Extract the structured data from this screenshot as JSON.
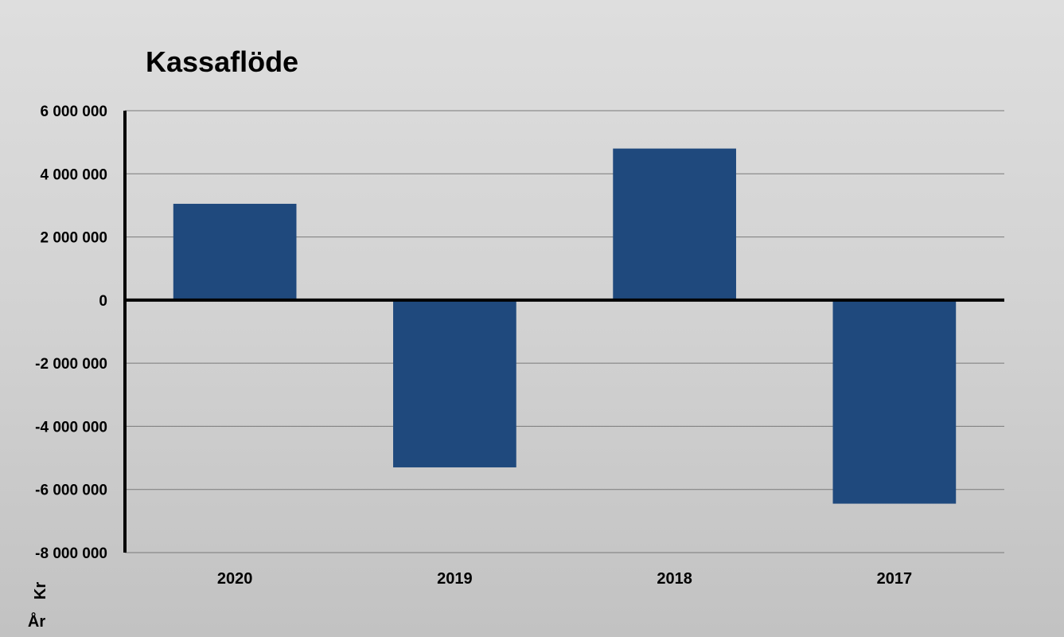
{
  "chart_data": {
    "type": "bar",
    "title": "Kassaflöde",
    "xlabel": "År",
    "ylabel": "Kr",
    "categories": [
      "2020",
      "2019",
      "2018",
      "2017"
    ],
    "series": [
      {
        "values": [
          3050000,
          -5300000,
          4800000,
          -6450000
        ]
      }
    ],
    "ylim": [
      -8000000,
      6000000
    ],
    "yticks": [
      6000000,
      4000000,
      2000000,
      0,
      -2000000,
      -4000000,
      -6000000,
      -8000000
    ],
    "ytick_labels": [
      "6 000 000",
      "4 000 000",
      "2 000 000",
      "0",
      "-2 000 000",
      "-4 000 000",
      "-6 000 000",
      "-8 000 000"
    ],
    "grid": true,
    "legend": "none",
    "bar_color": "#1f497d"
  }
}
